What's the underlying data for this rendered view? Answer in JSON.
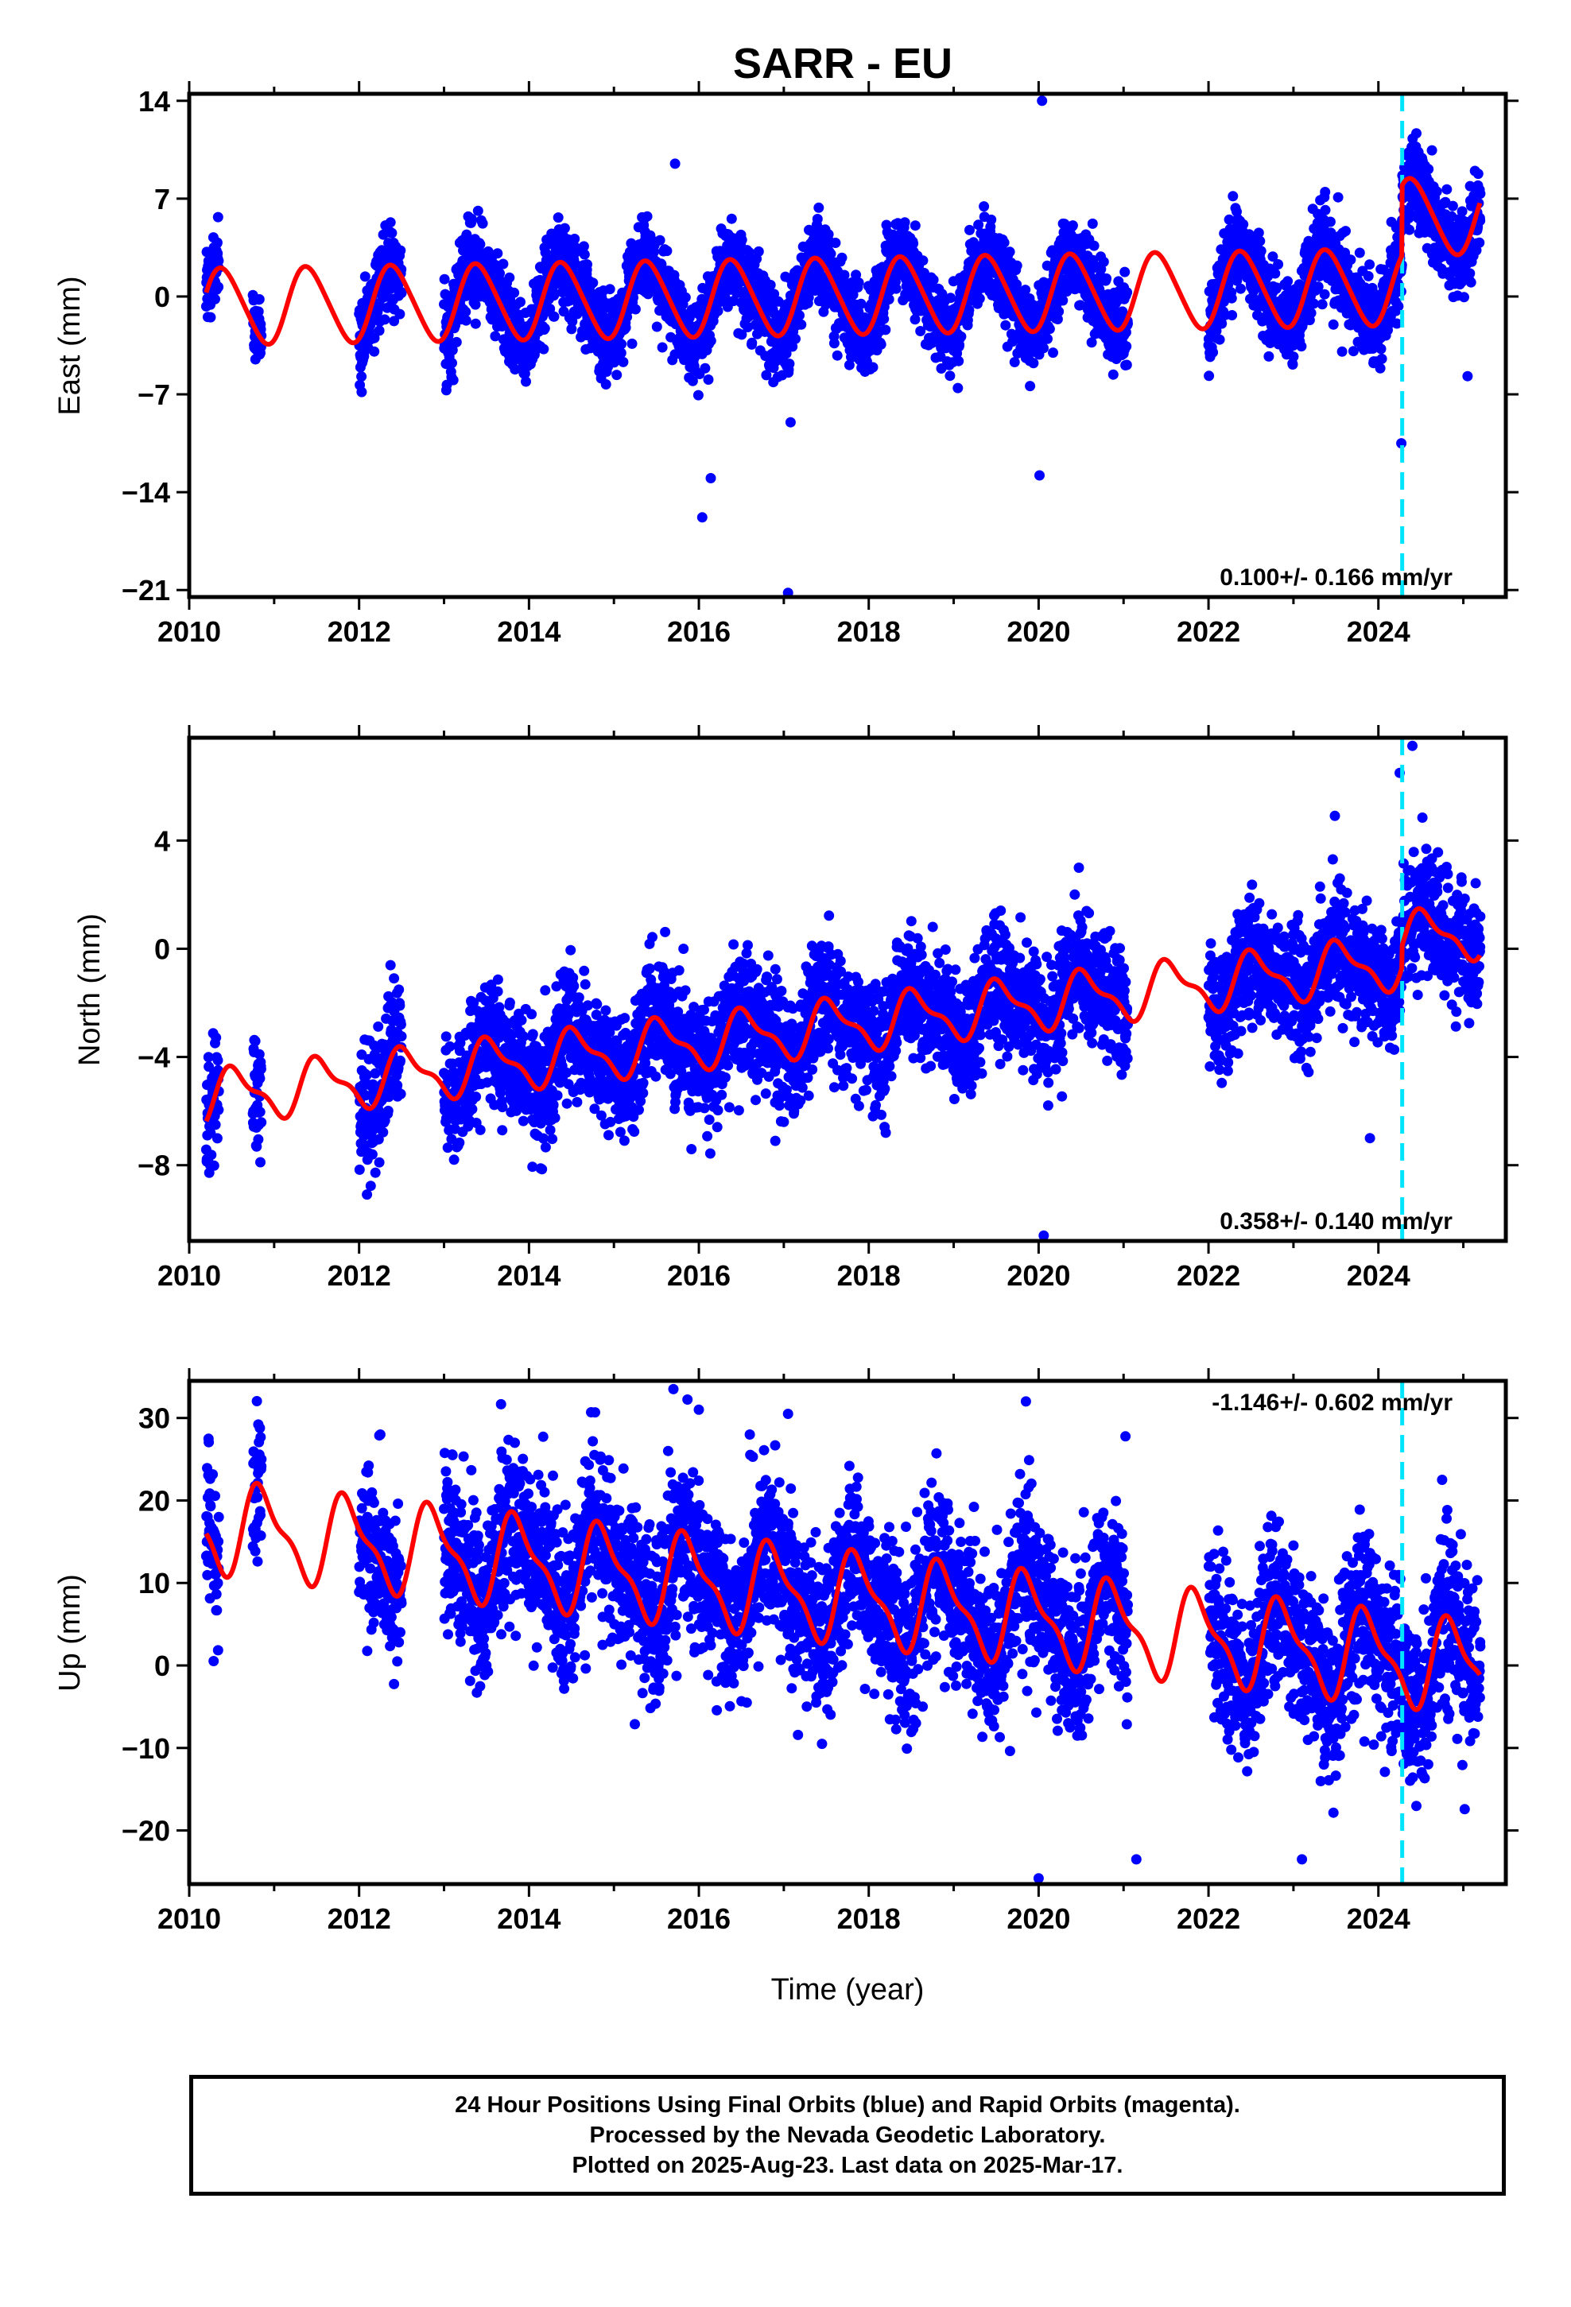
{
  "figure": {
    "title": "SARR - EU",
    "caption": [
      "24 Hour Positions Using Final Orbits (blue) and Rapid Orbits (magenta).",
      "Processed by the Nevada Geodetic Laboratory.",
      "Plotted on 2025-Aug-23. Last data on 2025-Mar-17."
    ],
    "colors": {
      "data": "#0000ff",
      "model": "#ff0000",
      "event": "#00e5ff"
    }
  },
  "chart_data": [
    {
      "type": "scatter",
      "ylabel": "East (mm)",
      "xlabel": "",
      "xlim": [
        2010.0,
        2025.5
      ],
      "ylim": [
        -21.5,
        14.5
      ],
      "yticks": [
        14,
        7,
        0,
        -7,
        -14,
        -21
      ],
      "xticks": [
        2010,
        2012,
        2014,
        2016,
        2018,
        2020,
        2022,
        2024
      ],
      "rate_text": "0.100+/- 0.166 mm/yr",
      "rate_position": "bottom-right",
      "event_line_x": 2024.28,
      "model": {
        "trend": 0.1,
        "offset": 0.0,
        "annual_amp": 2.7,
        "annual_phase": 0.15,
        "semi_amp": 0.3,
        "step": {
          "x": 2024.28,
          "size": 5.0
        }
      },
      "scatter": {
        "noise": 1.5,
        "segments": [
          [
            2010.2,
            2010.35
          ],
          [
            2010.75,
            2010.85
          ],
          [
            2012.0,
            2012.5
          ],
          [
            2013.0,
            2021.05
          ],
          [
            2022.0,
            2025.2
          ]
        ]
      },
      "outliers": [
        [
          2020.04,
          14.0
        ],
        [
          2017.05,
          -21.2
        ],
        [
          2016.04,
          -15.8
        ],
        [
          2016.14,
          -13.0
        ],
        [
          2017.08,
          -9.0
        ],
        [
          2020.01,
          -12.8
        ],
        [
          2024.27,
          -10.5
        ],
        [
          2015.72,
          9.5
        ],
        [
          2025.05,
          -5.7
        ]
      ]
    },
    {
      "type": "scatter",
      "ylabel": "North (mm)",
      "xlabel": "",
      "xlim": [
        2010.0,
        2025.5
      ],
      "ylim": [
        -10.8,
        7.8
      ],
      "yticks": [
        4,
        0,
        -4,
        -8
      ],
      "xticks": [
        2010,
        2012,
        2014,
        2016,
        2018,
        2020,
        2022,
        2024
      ],
      "rate_text": "0.358+/- 0.140 mm/yr",
      "rate_position": "bottom-right",
      "event_line_x": 2024.28,
      "model": {
        "trend": 0.358,
        "offset": -2.9,
        "annual_amp": 0.9,
        "annual_phase": 0.3,
        "semi_amp": 0.35,
        "step": {
          "x": 2024.28,
          "size": 0.8
        }
      },
      "scatter": {
        "noise": 1.1,
        "segments": [
          [
            2010.2,
            2010.35
          ],
          [
            2010.75,
            2010.85
          ],
          [
            2012.0,
            2012.5
          ],
          [
            2013.0,
            2021.05
          ],
          [
            2022.0,
            2025.2
          ]
        ]
      },
      "outliers": [
        [
          2020.06,
          -10.6
        ],
        [
          2024.4,
          7.5
        ],
        [
          2016.9,
          -7.1
        ],
        [
          2018.2,
          -6.8
        ],
        [
          2023.9,
          -7.0
        ],
        [
          2014.25,
          -6.7
        ],
        [
          2024.25,
          6.5
        ],
        [
          2017.0,
          -6.4
        ]
      ]
    },
    {
      "type": "scatter",
      "ylabel": "Up (mm)",
      "xlabel": "Time (year)",
      "xlim": [
        2010.0,
        2025.5
      ],
      "ylim": [
        -26.5,
        34.5
      ],
      "yticks": [
        30,
        20,
        10,
        0,
        -10,
        -20
      ],
      "xticks": [
        2010,
        2012,
        2014,
        2016,
        2018,
        2020,
        2022,
        2024
      ],
      "rate_text": "-1.146+/- 0.602 mm/yr",
      "rate_position": "top-right",
      "event_line_x": 2024.28,
      "model": {
        "trend": -1.146,
        "offset": 8.5,
        "annual_amp": 5.0,
        "annual_phase": 0.62,
        "semi_amp": 1.8,
        "step": {
          "x": 2024.28,
          "size": 0.0
        }
      },
      "scatter": {
        "noise": 5.0,
        "segments": [
          [
            2010.2,
            2010.35
          ],
          [
            2010.75,
            2010.85
          ],
          [
            2012.0,
            2012.5
          ],
          [
            2013.0,
            2021.05
          ],
          [
            2022.0,
            2025.2
          ]
        ]
      },
      "outliers": [
        [
          2015.7,
          33.5
        ],
        [
          2016.0,
          31.0
        ],
        [
          2016.6,
          28.0
        ],
        [
          2017.05,
          30.5
        ],
        [
          2019.85,
          32.0
        ],
        [
          2020.0,
          -25.8
        ],
        [
          2023.1,
          -23.5
        ],
        [
          2021.15,
          -23.5
        ],
        [
          2012.25,
          28.0
        ],
        [
          2013.1,
          25.5
        ],
        [
          2024.75,
          22.5
        ],
        [
          2010.85,
          25.0
        ]
      ]
    }
  ]
}
